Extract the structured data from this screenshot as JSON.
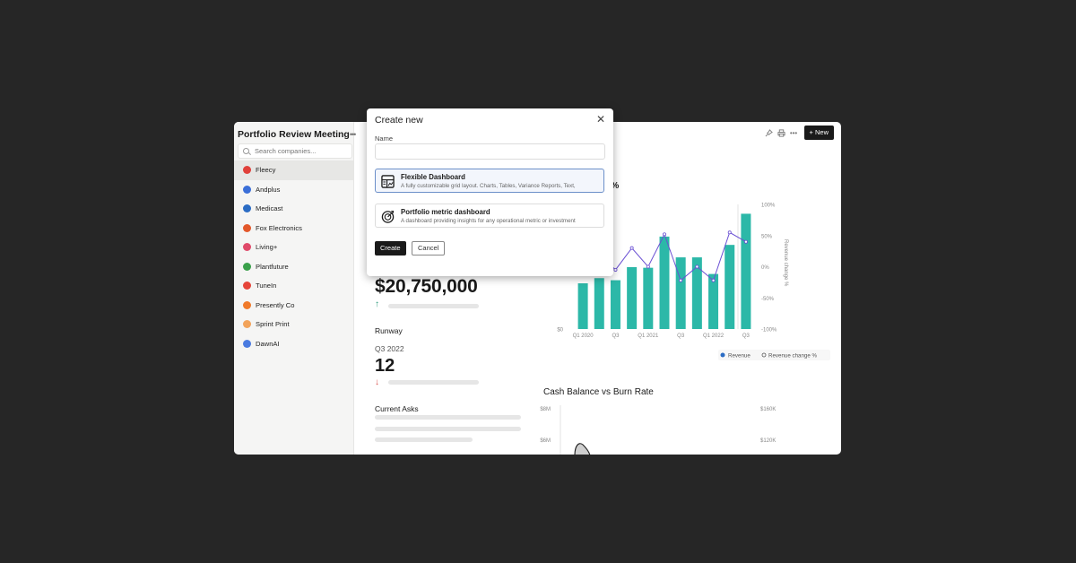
{
  "sidebar": {
    "title": "Portfolio Review Meeting",
    "menu_icon": "more-horizontal-icon",
    "search_placeholder": "Search companies...",
    "items": [
      {
        "label": "Fleecy",
        "icon_color": "#e0403a",
        "active": true
      },
      {
        "label": "Andplus",
        "icon_color": "#3b6fd8",
        "active": false
      },
      {
        "label": "Medicast",
        "icon_color": "#2b6cc4",
        "active": false
      },
      {
        "label": "Fox Electronics",
        "icon_color": "#e3582b",
        "active": false
      },
      {
        "label": "Living+",
        "icon_color": "#e04a6a",
        "active": false
      },
      {
        "label": "Plantfuture",
        "icon_color": "#3aa04a",
        "active": false
      },
      {
        "label": "TuneIn",
        "icon_color": "#e6453a",
        "active": false
      },
      {
        "label": "Presently Co",
        "icon_color": "#f07a2a",
        "active": false
      },
      {
        "label": "Sprint Print",
        "icon_color": "#f2a35a",
        "active": false
      },
      {
        "label": "DawnAI",
        "icon_color": "#4a7be0",
        "active": false
      }
    ]
  },
  "toolbar": {
    "new_label": "+ New",
    "icons": [
      "pin-icon",
      "print-icon",
      "more-horizontal-icon"
    ]
  },
  "metrics": {
    "revenue_value": "$20,750,000",
    "runway_label": "Runway",
    "runway_period": "Q3 2022",
    "runway_value": "12",
    "current_asks_label": "Current Asks"
  },
  "chart1": {
    "title_fragment": "e %"
  },
  "chart2": {
    "title": "Cash Balance vs Burn Rate"
  },
  "modal": {
    "title": "Create new",
    "name_label": "Name",
    "name_value": "",
    "options": [
      {
        "title": "Flexible Dashboard",
        "description": "A fully customizable grid layout. Charts, Tables, Variance Reports, Text,",
        "selected": true,
        "icon": "dashboard-grid-icon"
      },
      {
        "title": "Portfolio metric dashboard",
        "description": "A dashboard providing insights for any operational metric or investment",
        "selected": false,
        "icon": "target-icon"
      }
    ],
    "create_label": "Create",
    "cancel_label": "Cancel"
  },
  "chart_data": [
    {
      "type": "bar",
      "title": "",
      "categories": [
        "Q1 2020",
        "Q2 2020",
        "Q3 2020",
        "Q4 2020",
        "Q1 2021",
        "Q2 2021",
        "Q3 2021",
        "Q4 2021",
        "Q1 2022",
        "Q2 2022",
        "Q3 2022"
      ],
      "tick_labels": [
        "Q1 2020",
        "Q3",
        "Q1 2021",
        "Q3",
        "Q1 2022",
        "Q3"
      ],
      "left_axis_ticks": [
        "$0",
        "$300K"
      ],
      "right_axis_ticks": [
        "100%",
        "50%",
        "0%",
        "-50%",
        "-100%"
      ],
      "right_axis_label": "Revenue change %",
      "series": [
        {
          "name": "Revenue",
          "kind": "bar",
          "color": "#2cb8a8",
          "values": [
            220,
            245,
            235,
            298,
            295,
            445,
            345,
            345,
            265,
            405,
            555
          ]
        },
        {
          "name": "Revenue change %",
          "kind": "line",
          "color": "#6a4fd3",
          "values": [
            25,
            20,
            -5,
            30,
            0,
            52,
            -22,
            0,
            -22,
            55,
            40
          ]
        }
      ],
      "legend_position": "bottom-right"
    },
    {
      "type": "line",
      "title": "Cash Balance vs Burn Rate",
      "left_axis_ticks": [
        "$8M",
        "$6M"
      ],
      "right_axis_ticks": [
        "$160K",
        "$120K"
      ]
    }
  ]
}
